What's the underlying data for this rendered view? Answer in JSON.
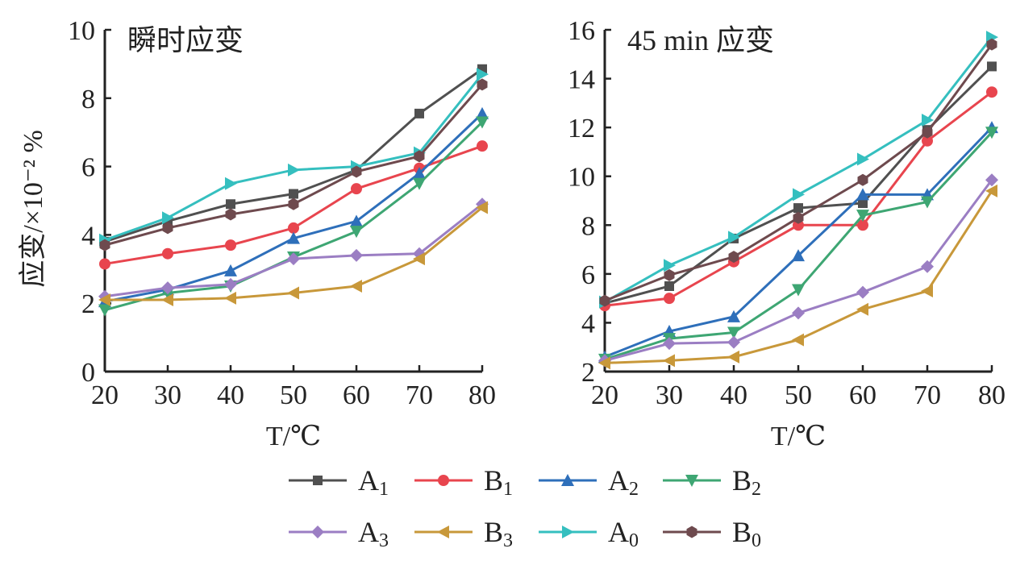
{
  "chart_data": [
    {
      "type": "line",
      "title": "瞬时应变",
      "xlabel": "T/℃",
      "ylabel": "应变/×10⁻² %",
      "x": [
        20,
        30,
        40,
        50,
        60,
        70,
        80
      ],
      "xlim": [
        20,
        80
      ],
      "ylim": [
        0,
        10
      ],
      "xticks": [
        "20",
        "30",
        "40",
        "50",
        "60",
        "70",
        "80"
      ],
      "yticks": [
        "0",
        "2",
        "4",
        "6",
        "8",
        "10"
      ],
      "ytick_values": [
        0,
        2,
        4,
        6,
        8,
        10
      ],
      "grid": false,
      "series": [
        {
          "name": "A1",
          "values": [
            3.8,
            4.4,
            4.9,
            5.2,
            5.9,
            7.55,
            8.85
          ]
        },
        {
          "name": "B1",
          "values": [
            3.15,
            3.45,
            3.7,
            4.2,
            5.35,
            5.95,
            6.6
          ]
        },
        {
          "name": "A2",
          "values": [
            2.05,
            2.4,
            2.95,
            3.9,
            4.4,
            5.8,
            7.55
          ]
        },
        {
          "name": "B2",
          "values": [
            1.8,
            2.3,
            2.5,
            3.35,
            4.1,
            5.5,
            7.3
          ]
        },
        {
          "name": "A3",
          "values": [
            2.2,
            2.45,
            2.55,
            3.3,
            3.4,
            3.45,
            4.9
          ]
        },
        {
          "name": "B3",
          "values": [
            2.1,
            2.1,
            2.15,
            2.3,
            2.5,
            3.3,
            4.8
          ]
        },
        {
          "name": "A0",
          "values": [
            3.85,
            4.5,
            5.5,
            5.9,
            6.0,
            6.4,
            8.7
          ]
        },
        {
          "name": "B0",
          "values": [
            3.7,
            4.2,
            4.6,
            4.9,
            5.85,
            6.3,
            8.4
          ]
        }
      ]
    },
    {
      "type": "line",
      "title": "45 min 应变",
      "xlabel": "T/℃",
      "ylabel": "",
      "x": [
        20,
        30,
        40,
        50,
        60,
        70,
        80
      ],
      "xlim": [
        20,
        80
      ],
      "ylim": [
        2,
        16
      ],
      "xticks": [
        "20",
        "30",
        "40",
        "50",
        "60",
        "70",
        "80"
      ],
      "yticks": [
        "2",
        "4",
        "6",
        "8",
        "10",
        "12",
        "14",
        "16"
      ],
      "ytick_values": [
        2,
        4,
        6,
        8,
        10,
        12,
        14,
        16
      ],
      "grid": false,
      "series": [
        {
          "name": "A1",
          "values": [
            4.8,
            5.5,
            7.45,
            8.7,
            8.9,
            11.9,
            14.5
          ]
        },
        {
          "name": "B1",
          "values": [
            4.7,
            5.0,
            6.5,
            8.0,
            8.0,
            11.45,
            13.45
          ]
        },
        {
          "name": "A2",
          "values": [
            2.6,
            3.65,
            4.25,
            6.75,
            9.25,
            9.25,
            12.0
          ]
        },
        {
          "name": "B2",
          "values": [
            2.5,
            3.35,
            3.6,
            5.35,
            8.4,
            8.95,
            11.8
          ]
        },
        {
          "name": "A3",
          "values": [
            2.45,
            3.15,
            3.2,
            4.4,
            5.25,
            6.3,
            9.85
          ]
        },
        {
          "name": "B3",
          "values": [
            2.35,
            2.45,
            2.6,
            3.3,
            4.55,
            5.3,
            9.4
          ]
        },
        {
          "name": "A0",
          "values": [
            4.85,
            6.35,
            7.5,
            9.25,
            10.7,
            12.3,
            15.7
          ]
        },
        {
          "name": "B0",
          "values": [
            4.9,
            5.95,
            6.7,
            8.3,
            9.85,
            11.8,
            15.4
          ]
        }
      ]
    }
  ],
  "legend": {
    "placement": "bottom",
    "entries": [
      {
        "letter": "A",
        "sub": "1",
        "marker": "square",
        "color": "#505050"
      },
      {
        "letter": "B",
        "sub": "1",
        "marker": "circle",
        "color": "#e8454e"
      },
      {
        "letter": "A",
        "sub": "2",
        "marker": "triangle-up",
        "color": "#2e6fba"
      },
      {
        "letter": "B",
        "sub": "2",
        "marker": "triangle-down",
        "color": "#3ea673"
      },
      {
        "letter": "A",
        "sub": "3",
        "marker": "diamond",
        "color": "#9b7ec3"
      },
      {
        "letter": "B",
        "sub": "3",
        "marker": "triangle-left",
        "color": "#c8983a"
      },
      {
        "letter": "A",
        "sub": "0",
        "marker": "triangle-right",
        "color": "#35bfbf"
      },
      {
        "letter": "B",
        "sub": "0",
        "marker": "hexagon",
        "color": "#6e4a4e"
      }
    ]
  }
}
